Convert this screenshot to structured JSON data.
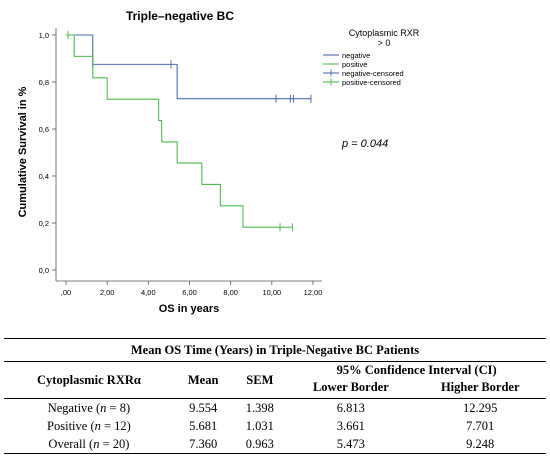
{
  "chart_data": {
    "type": "line",
    "title": "Triple–negative BC",
    "xlabel": "OS in years",
    "ylabel": "Cumulative Survival in %",
    "xlim": [
      0,
      12
    ],
    "ylim": [
      0,
      1
    ],
    "x_ticks": [
      ",00",
      "2,00",
      "4,00",
      "6,00",
      "8,00",
      "10,00",
      "12,00"
    ],
    "x_tick_values": [
      0,
      2,
      4,
      6,
      8,
      10,
      12
    ],
    "y_ticks": [
      "0,0",
      "0,2",
      "0,4",
      "0,6",
      "0,8",
      "1,0"
    ],
    "y_tick_values": [
      0,
      0.2,
      0.4,
      0.6,
      0.8,
      1.0
    ],
    "legend_title_lines": [
      "Cytoplasmic RXR",
      "> 0"
    ],
    "legend_position": "top-right",
    "legend": [
      {
        "name": "negative",
        "color": "#4a6cb3",
        "marker": "line"
      },
      {
        "name": "positive",
        "color": "#4dbd4d",
        "marker": "line"
      },
      {
        "name": "negative-censored",
        "color": "#4a6cb3",
        "marker": "cross"
      },
      {
        "name": "positive-censored",
        "color": "#4dbd4d",
        "marker": "cross"
      }
    ],
    "series": [
      {
        "name": "negative",
        "color": "#4a6cb3",
        "steps": [
          [
            0,
            1.0
          ],
          [
            1.3,
            0.875
          ],
          [
            5.4,
            0.729
          ],
          [
            11.9,
            0.729
          ]
        ],
        "censored": [
          [
            1.3,
            0.875
          ],
          [
            5.1,
            0.875
          ],
          [
            10.2,
            0.729
          ],
          [
            10.9,
            0.729
          ],
          [
            11.05,
            0.729
          ],
          [
            11.9,
            0.729
          ]
        ]
      },
      {
        "name": "positive",
        "color": "#4dbd4d",
        "steps": [
          [
            0,
            1.0
          ],
          [
            0.4,
            0.909
          ],
          [
            1.3,
            0.818
          ],
          [
            2.0,
            0.727
          ],
          [
            4.5,
            0.636
          ],
          [
            4.65,
            0.545
          ],
          [
            5.4,
            0.455
          ],
          [
            6.6,
            0.364
          ],
          [
            7.5,
            0.273
          ],
          [
            8.6,
            0.182
          ],
          [
            11.0,
            0.182
          ]
        ],
        "censored": [
          [
            0.1,
            1.0
          ],
          [
            10.4,
            0.182
          ],
          [
            11.0,
            0.182
          ]
        ]
      }
    ],
    "annotation": "p = 0.044"
  },
  "table": {
    "caption": "Mean OS Time (Years) in Triple-Negative BC Patients",
    "col_cytoplasmic": "Cytoplasmic RXRα",
    "col_mean": "Mean",
    "col_sem": "SEM",
    "col_ci": "95% Confidence Interval (CI)",
    "col_lower": "Lower Border",
    "col_higher": "Higher Border",
    "rows": [
      {
        "group": "Negative (",
        "n_sym": "n",
        "n_val": " = 8)",
        "mean": "9.554",
        "sem": "1.398",
        "lower": "6.813",
        "higher": "12.295"
      },
      {
        "group": "Positive (",
        "n_sym": "n",
        "n_val": " = 12)",
        "mean": "5.681",
        "sem": "1.031",
        "lower": "3.661",
        "higher": "7.701"
      },
      {
        "group": "Overall (",
        "n_sym": "n",
        "n_val": " = 20)",
        "mean": "7.360",
        "sem": "0.963",
        "lower": "5.473",
        "higher": "9.248"
      }
    ]
  }
}
